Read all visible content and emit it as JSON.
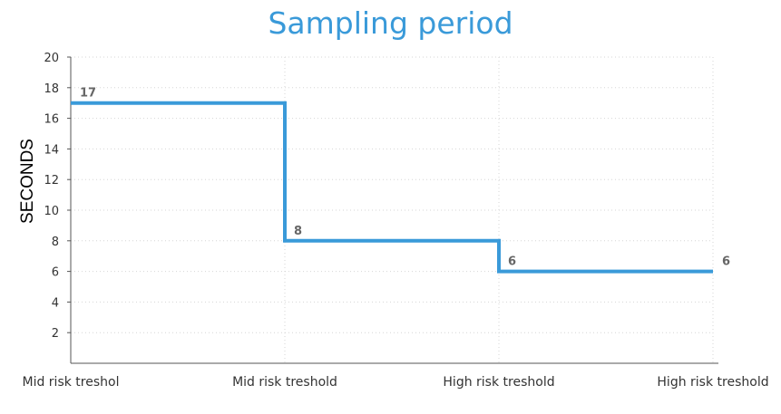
{
  "chart_data": {
    "type": "line",
    "step": true,
    "title": "Sampling period",
    "xlabel": "",
    "ylabel": "SECONDS",
    "categories": [
      "Mid risk treshol",
      "Mid risk treshold",
      "High risk treshold",
      "High risk treshold"
    ],
    "series": [
      {
        "values": [
          17,
          8,
          6,
          6
        ],
        "data_labels": [
          "17",
          "8",
          "6",
          "6"
        ]
      }
    ],
    "ylim": [
      0,
      20
    ],
    "yticks": [
      2,
      4,
      6,
      8,
      10,
      12,
      14,
      16,
      18,
      20
    ],
    "grid": true,
    "line_color": "#3a9ad9",
    "title_color": "#3a9ad9"
  }
}
